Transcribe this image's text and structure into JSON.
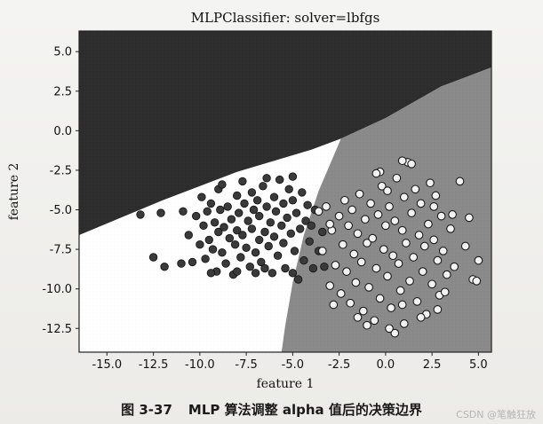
{
  "chart_data": {
    "type": "scatter",
    "title": "MLPClassifier: solver=lbfgs",
    "xlabel": "feature 1",
    "ylabel": "feature 2",
    "xlim": [
      -16.5,
      5.7
    ],
    "ylim": [
      -14.0,
      6.3
    ],
    "xticks": [
      -15.0,
      -12.5,
      -10.0,
      -7.5,
      -5.0,
      -2.5,
      0.0,
      2.5,
      5.0
    ],
    "yticks": [
      5.0,
      2.5,
      0.0,
      -2.5,
      -5.0,
      -7.5,
      -10.0,
      -12.5
    ],
    "grid": false,
    "decision_regions": {
      "class_0_color": "#2d2d2d",
      "class_1_color": "#8a8a8a",
      "unlabeled_region_color": "#ffffff",
      "boundary_class0_top": [
        [
          -16.5,
          -6.6
        ],
        [
          -12.0,
          -4.4
        ],
        [
          -8.0,
          -2.6
        ],
        [
          -4.0,
          -1.2
        ],
        [
          -2.4,
          -0.5
        ],
        [
          0.0,
          0.8
        ],
        [
          3.0,
          2.8
        ],
        [
          5.7,
          4.0
        ]
      ],
      "boundary_class1_left": [
        [
          -2.4,
          -0.5
        ],
        [
          -3.6,
          -3.8
        ],
        [
          -4.4,
          -6.6
        ],
        [
          -5.0,
          -9.6
        ],
        [
          -5.4,
          -12.3
        ],
        [
          -5.6,
          -14.0
        ]
      ]
    },
    "series": [
      {
        "marker": "filled-dark",
        "points": [
          [
            -13.2,
            -5.3
          ],
          [
            -12.5,
            -8.0
          ],
          [
            -12.1,
            -5.2
          ],
          [
            -11.9,
            -8.6
          ],
          [
            -11.0,
            -8.4
          ],
          [
            -10.9,
            -5.1
          ],
          [
            -10.6,
            -6.6
          ],
          [
            -10.4,
            -8.3
          ],
          [
            -10.2,
            -5.4
          ],
          [
            -10.0,
            -7.2
          ],
          [
            -9.9,
            -4.2
          ],
          [
            -9.8,
            -6.0
          ],
          [
            -9.7,
            -8.1
          ],
          [
            -9.6,
            -5.1
          ],
          [
            -9.5,
            -6.9
          ],
          [
            -9.4,
            -4.6
          ],
          [
            -9.3,
            -7.5
          ],
          [
            -9.2,
            -5.8
          ],
          [
            -9.1,
            -8.9
          ],
          [
            -9.0,
            -6.4
          ],
          [
            -9.0,
            -3.7
          ],
          [
            -8.9,
            -5.0
          ],
          [
            -8.8,
            -7.7
          ],
          [
            -8.7,
            -6.1
          ],
          [
            -8.6,
            -8.4
          ],
          [
            -8.5,
            -4.8
          ],
          [
            -8.4,
            -6.8
          ],
          [
            -8.3,
            -5.6
          ],
          [
            -8.2,
            -9.1
          ],
          [
            -8.1,
            -7.2
          ],
          [
            -8.0,
            -4.1
          ],
          [
            -8.0,
            -6.3
          ],
          [
            -7.9,
            -5.2
          ],
          [
            -7.8,
            -8.0
          ],
          [
            -7.7,
            -6.6
          ],
          [
            -7.6,
            -4.6
          ],
          [
            -7.5,
            -7.4
          ],
          [
            -7.4,
            -5.7
          ],
          [
            -7.3,
            -8.6
          ],
          [
            -7.2,
            -3.9
          ],
          [
            -7.2,
            -6.2
          ],
          [
            -7.1,
            -5.0
          ],
          [
            -7.0,
            -7.7
          ],
          [
            -6.9,
            -4.4
          ],
          [
            -6.8,
            -6.9
          ],
          [
            -6.8,
            -5.4
          ],
          [
            -6.7,
            -8.3
          ],
          [
            -6.6,
            -3.5
          ],
          [
            -6.5,
            -6.4
          ],
          [
            -6.4,
            -4.8
          ],
          [
            -6.3,
            -7.3
          ],
          [
            -6.2,
            -5.8
          ],
          [
            -6.1,
            -9.0
          ],
          [
            -6.0,
            -4.2
          ],
          [
            -6.0,
            -6.7
          ],
          [
            -5.9,
            -5.1
          ],
          [
            -5.8,
            -7.9
          ],
          [
            -5.7,
            -3.1
          ],
          [
            -5.6,
            -6.0
          ],
          [
            -5.5,
            -4.6
          ],
          [
            -5.5,
            -7.1
          ],
          [
            -5.4,
            -8.7
          ],
          [
            -5.3,
            -5.5
          ],
          [
            -5.2,
            -3.7
          ],
          [
            -5.1,
            -6.5
          ],
          [
            -5.0,
            -4.4
          ],
          [
            -4.9,
            -7.6
          ],
          [
            -4.8,
            -5.2
          ],
          [
            -4.7,
            -9.4
          ],
          [
            -4.6,
            -6.2
          ],
          [
            -4.5,
            -3.9
          ],
          [
            -4.4,
            -8.2
          ],
          [
            -4.3,
            -5.7
          ],
          [
            -4.2,
            -4.7
          ],
          [
            -4.1,
            -7.0
          ],
          [
            -4.0,
            -6.0
          ],
          [
            -3.9,
            -8.7
          ],
          [
            -3.8,
            -5.0
          ],
          [
            -3.6,
            -7.6
          ],
          [
            -3.4,
            -6.4
          ],
          [
            -3.3,
            -8.6
          ],
          [
            -7.7,
            -3.2
          ],
          [
            -6.4,
            -3.0
          ],
          [
            -8.8,
            -3.4
          ],
          [
            -5.0,
            -2.9
          ],
          [
            -7.0,
            -9.0
          ],
          [
            -8.0,
            -8.9
          ],
          [
            -6.5,
            -8.7
          ],
          [
            -9.4,
            -9.0
          ],
          [
            -5.0,
            -9.0
          ]
        ]
      },
      {
        "marker": "hollow",
        "points": [
          [
            -3.6,
            -5.1
          ],
          [
            -3.4,
            -7.6
          ],
          [
            -3.2,
            -4.8
          ],
          [
            -3.0,
            -9.8
          ],
          [
            -2.9,
            -6.3
          ],
          [
            -2.7,
            -8.5
          ],
          [
            -2.5,
            -5.4
          ],
          [
            -2.4,
            -10.3
          ],
          [
            -2.3,
            -7.2
          ],
          [
            -2.2,
            -4.4
          ],
          [
            -2.1,
            -8.9
          ],
          [
            -2.0,
            -6.0
          ],
          [
            -1.9,
            -10.9
          ],
          [
            -1.8,
            -5.0
          ],
          [
            -1.7,
            -7.8
          ],
          [
            -1.6,
            -9.6
          ],
          [
            -1.5,
            -6.5
          ],
          [
            -1.4,
            -4.0
          ],
          [
            -1.3,
            -8.3
          ],
          [
            -1.2,
            -11.4
          ],
          [
            -1.1,
            -5.6
          ],
          [
            -1.0,
            -7.1
          ],
          [
            -0.9,
            -9.9
          ],
          [
            -0.8,
            -4.6
          ],
          [
            -0.7,
            -6.8
          ],
          [
            -0.6,
            -12.0
          ],
          [
            -0.5,
            -8.7
          ],
          [
            -0.4,
            -5.3
          ],
          [
            -0.3,
            -10.6
          ],
          [
            -0.2,
            -3.5
          ],
          [
            -0.1,
            -7.5
          ],
          [
            0.0,
            -6.0
          ],
          [
            0.1,
            -9.2
          ],
          [
            0.2,
            -4.8
          ],
          [
            0.3,
            -11.2
          ],
          [
            0.4,
            -7.9
          ],
          [
            0.5,
            -5.7
          ],
          [
            0.6,
            -3.0
          ],
          [
            0.7,
            -8.4
          ],
          [
            0.8,
            -10.1
          ],
          [
            0.9,
            -6.3
          ],
          [
            1.0,
            -4.2
          ],
          [
            1.0,
            -12.2
          ],
          [
            1.1,
            -7.1
          ],
          [
            1.2,
            -2.0
          ],
          [
            1.3,
            -9.5
          ],
          [
            1.4,
            -5.2
          ],
          [
            1.5,
            -8.0
          ],
          [
            1.6,
            -3.7
          ],
          [
            1.7,
            -10.8
          ],
          [
            1.8,
            -6.6
          ],
          [
            1.9,
            -4.6
          ],
          [
            2.0,
            -8.9
          ],
          [
            2.1,
            -7.3
          ],
          [
            2.2,
            -11.6
          ],
          [
            2.3,
            -5.9
          ],
          [
            2.4,
            -3.3
          ],
          [
            2.5,
            -9.7
          ],
          [
            2.6,
            -6.9
          ],
          [
            2.7,
            -4.1
          ],
          [
            2.8,
            -8.2
          ],
          [
            2.9,
            -10.4
          ],
          [
            3.0,
            -5.4
          ],
          [
            3.1,
            -7.6
          ],
          [
            3.3,
            -9.1
          ],
          [
            3.5,
            -6.2
          ],
          [
            3.7,
            -8.6
          ],
          [
            4.0,
            -3.2
          ],
          [
            4.3,
            -7.3
          ],
          [
            4.5,
            -5.5
          ],
          [
            4.7,
            -9.4
          ],
          [
            5.0,
            -8.2
          ],
          [
            -3.0,
            -5.9
          ],
          [
            0.5,
            -12.8
          ],
          [
            -0.3,
            -2.6
          ],
          [
            1.4,
            -2.1
          ],
          [
            2.6,
            -4.8
          ],
          [
            3.6,
            -5.3
          ],
          [
            0.1,
            -3.8
          ],
          [
            -1.0,
            -12.3
          ],
          [
            0.9,
            -11.0
          ],
          [
            1.9,
            -11.8
          ],
          [
            2.8,
            -11.3
          ],
          [
            -1.5,
            -11.8
          ],
          [
            0.2,
            -12.5
          ],
          [
            -0.5,
            -2.7
          ],
          [
            3.2,
            -10.2
          ],
          [
            4.9,
            -9.5
          ],
          [
            0.9,
            -1.9
          ],
          [
            -2.8,
            -11.0
          ]
        ]
      }
    ]
  },
  "caption": {
    "figure_number": "图 3-37",
    "text": "MLP 算法调整 alpha 值后的决策边界"
  },
  "watermark": "CSDN @笔触狂放"
}
